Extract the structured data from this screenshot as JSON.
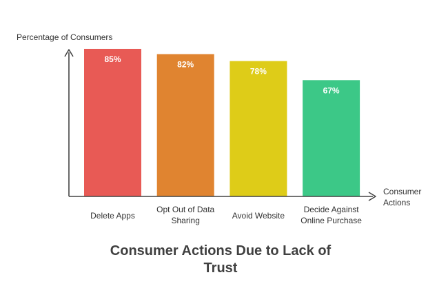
{
  "chart_data": {
    "type": "bar",
    "title_lines": [
      "Consumer Actions Due to Lack of",
      "Trust"
    ],
    "ylabel": "Percentage of Consumers",
    "xlabel_lines": [
      "Consumer",
      "Actions"
    ],
    "categories": [
      [
        "Delete Apps"
      ],
      [
        "Opt Out of Data",
        "Sharing"
      ],
      [
        "Avoid Website"
      ],
      [
        "Decide Against",
        "Online Purchase"
      ]
    ],
    "values": [
      85,
      82,
      78,
      67
    ],
    "value_labels": [
      "85%",
      "82%",
      "78%",
      "67%"
    ],
    "colors": [
      "#E85A55",
      "#E08430",
      "#DECC18",
      "#3CC887"
    ],
    "ylim": [
      0,
      100
    ],
    "grid": false,
    "legend": "none"
  }
}
